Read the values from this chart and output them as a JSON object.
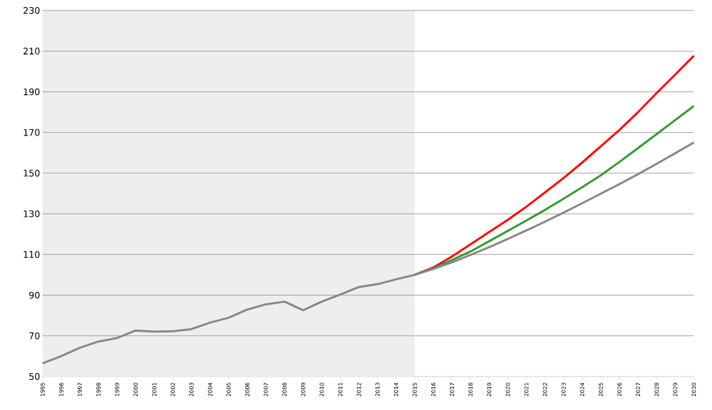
{
  "chart_data": {
    "type": "line",
    "x": [
      1995,
      1996,
      1997,
      1998,
      1999,
      2000,
      2001,
      2002,
      2003,
      2004,
      2005,
      2006,
      2007,
      2008,
      2009,
      2010,
      2011,
      2012,
      2013,
      2014,
      2015,
      2016,
      2017,
      2018,
      2019,
      2020,
      2021,
      2022,
      2023,
      2024,
      2025,
      2026,
      2027,
      2028,
      2029,
      2030
    ],
    "series": [
      {
        "color": "#ff0000",
        "values": [
          null,
          null,
          null,
          null,
          null,
          null,
          null,
          null,
          null,
          null,
          null,
          null,
          null,
          null,
          null,
          null,
          null,
          null,
          null,
          null,
          100,
          103.6,
          109.0,
          115.0,
          121.0,
          127.0,
          133.5,
          140.5,
          147.6,
          155.2,
          163.2,
          171.2,
          180.0,
          189.4,
          198.5,
          207.7
        ]
      },
      {
        "color": "#339933",
        "values": [
          null,
          null,
          null,
          null,
          null,
          null,
          null,
          null,
          null,
          null,
          null,
          null,
          null,
          null,
          null,
          null,
          null,
          null,
          null,
          null,
          100,
          103.2,
          107.2,
          111.5,
          116.5,
          121.6,
          126.7,
          131.9,
          137.4,
          143.1,
          148.9,
          155.5,
          162.3,
          169.2,
          176.1,
          183.0
        ]
      },
      {
        "color": "#878787",
        "values": [
          56.5,
          60.0,
          64.1,
          67.2,
          68.9,
          72.6,
          72.1,
          72.2,
          73.3,
          76.5,
          78.9,
          82.9,
          85.5,
          86.8,
          82.6,
          86.8,
          90.3,
          94.0,
          95.4,
          97.8,
          100,
          102.9,
          106.1,
          109.8,
          113.6,
          117.6,
          121.8,
          126.1,
          130.6,
          135.2,
          139.9,
          144.6,
          149.5,
          154.6,
          159.8,
          165.1
        ]
      }
    ],
    "xlim": [
      1995,
      2030
    ],
    "ylim": [
      50,
      230
    ],
    "xticks": [
      1995,
      1996,
      1997,
      1998,
      1999,
      2000,
      2001,
      2002,
      2003,
      2004,
      2005,
      2006,
      2007,
      2008,
      2009,
      2010,
      2011,
      2012,
      2013,
      2014,
      2015,
      2016,
      2017,
      2018,
      2019,
      2020,
      2021,
      2022,
      2023,
      2024,
      2025,
      2026,
      2027,
      2028,
      2029,
      2030
    ],
    "yticks": [
      50,
      70,
      90,
      110,
      130,
      150,
      170,
      190,
      210,
      230
    ],
    "grid": "y",
    "bands": [
      {
        "axis": "x",
        "from": 1995,
        "to": 2015,
        "color": "#eeeeee"
      }
    ]
  }
}
